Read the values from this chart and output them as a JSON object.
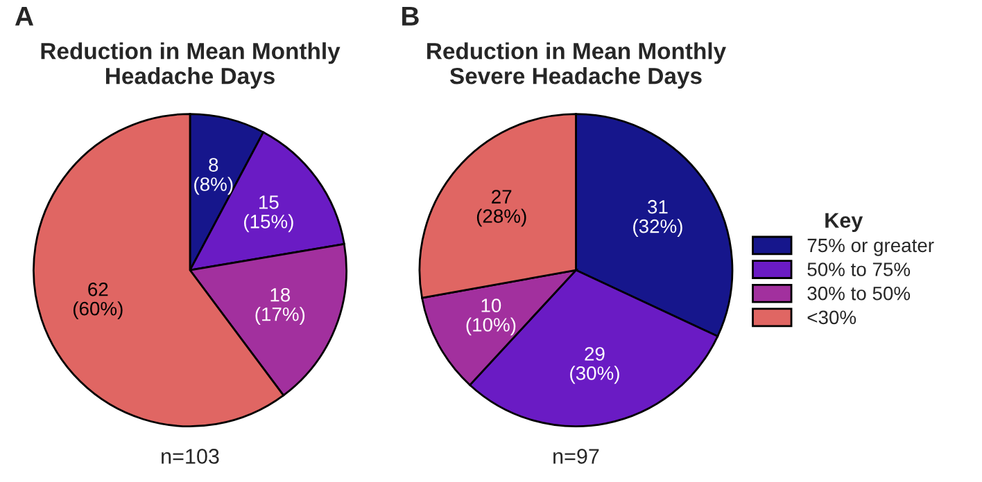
{
  "chart_data": [
    {
      "type": "pie",
      "title": "Reduction in Mean Monthly\nHeadache Days",
      "categories": [
        null,
        null,
        null,
        null
      ],
      "values": [
        8,
        15,
        18,
        62
      ],
      "value_labels": [
        "8\n(8%)",
        "15\n(15%)",
        "18\n(17%)",
        "62\n(60%)"
      ],
      "colors": [
        "#16168c",
        "#6a1bc4",
        "#a2309e",
        "#e06663"
      ],
      "legend": false,
      "annotations": [
        "A",
        "n=103"
      ]
    },
    {
      "type": "pie",
      "title": "Reduction in Mean Monthly\nSevere Headache Days",
      "categories": [
        "75% or greater",
        "50% to 75%",
        "30% to 50%",
        "<30%"
      ],
      "values": [
        31,
        29,
        10,
        27
      ],
      "value_labels": [
        "31\n(32%)",
        "29\n(30%)",
        "10\n(10%)",
        "27\n(28%)"
      ],
      "colors": [
        "#16168c",
        "#6a1bc4",
        "#a2309e",
        "#e06663"
      ],
      "legend": "right",
      "legend_title": "Key",
      "annotations": [
        "B",
        "n=97"
      ]
    }
  ]
}
